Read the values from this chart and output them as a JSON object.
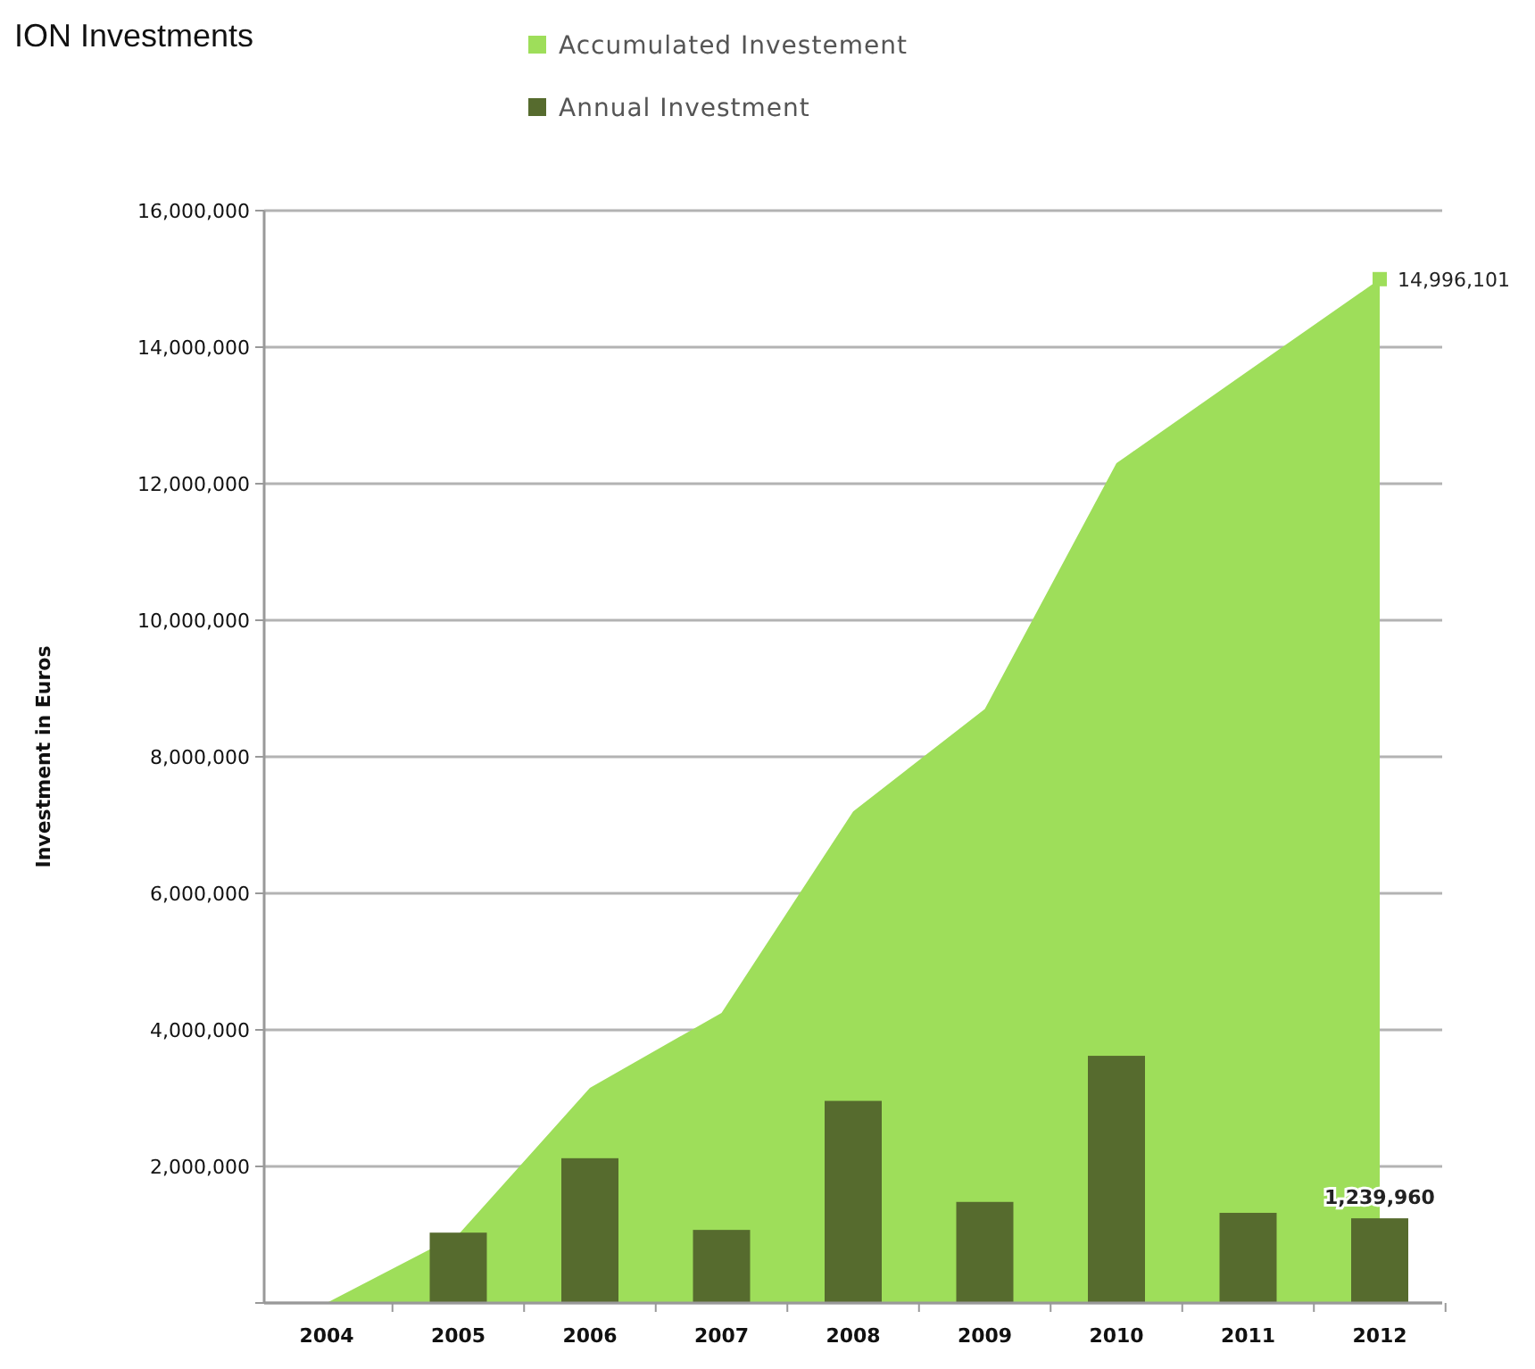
{
  "chart_data": {
    "type": "bar",
    "title": "ION Investments",
    "ylabel": "Investment in Euros",
    "categories": [
      "2004",
      "2005",
      "2006",
      "2007",
      "2008",
      "2009",
      "2010",
      "2011",
      "2012"
    ],
    "series": [
      {
        "name": "Accumulated Investement",
        "type": "area",
        "color": "#9ede5a",
        "values": [
          0,
          1000000,
          3150000,
          4250000,
          7200000,
          8700000,
          12300000,
          13650000,
          14996101
        ],
        "value_labels": [
          null,
          null,
          null,
          null,
          null,
          null,
          null,
          null,
          "14,996,101"
        ]
      },
      {
        "name": "Annual Investment",
        "type": "bar",
        "color": "#566b2e",
        "values": [
          null,
          1030000,
          2120000,
          1070000,
          2960000,
          1480000,
          3620000,
          1320000,
          1239960
        ],
        "value_labels": [
          null,
          null,
          null,
          null,
          null,
          null,
          null,
          null,
          "1,239,960"
        ]
      }
    ],
    "ylim": [
      0,
      16000000
    ],
    "yticks": [
      {
        "value": 0,
        "label": null
      },
      {
        "value": 2000000,
        "label": "2,000,000"
      },
      {
        "value": 4000000,
        "label": "4,000,000"
      },
      {
        "value": 6000000,
        "label": "6,000,000"
      },
      {
        "value": 8000000,
        "label": "8,000,000"
      },
      {
        "value": 10000000,
        "label": "10,000,000"
      },
      {
        "value": 12000000,
        "label": "12,000,000"
      },
      {
        "value": 14000000,
        "label": "14,000,000"
      },
      {
        "value": 16000000,
        "label": "16,000,000"
      }
    ],
    "grid": "y",
    "legend": "top"
  }
}
